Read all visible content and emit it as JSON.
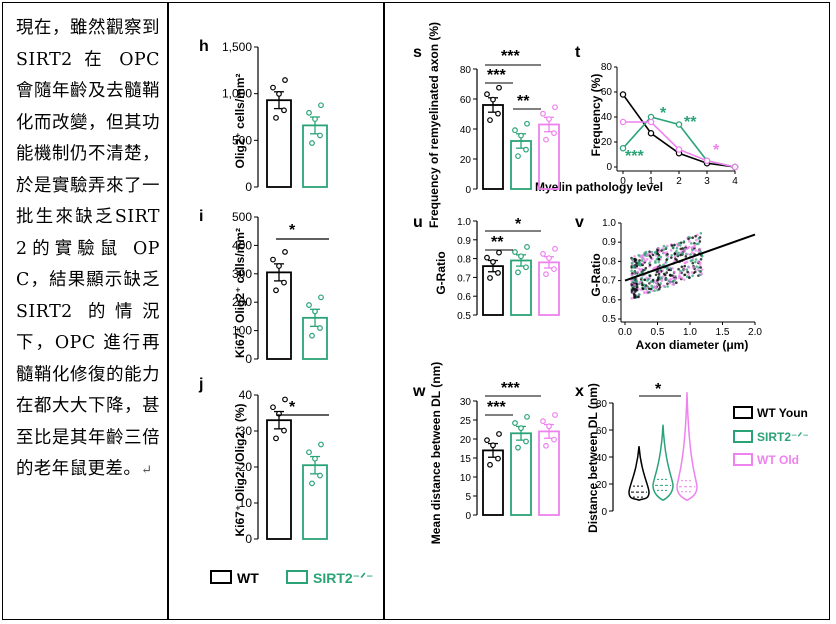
{
  "paragraph": "現在，雖然觀察到 SIRT2 在 OPC 會隨年齡及去髓鞘化而改變，但其功能機制仍不清楚，於是實驗弄來了一批生來缺乏SIRT2的實驗鼠 OPC，結果顯示缺乏 SIRT2 的情況下，OPC 進行再髓鞘化修復的能力在都大大下降，甚至比是其年齡三倍的老年鼠更差。",
  "return_mark": "↵",
  "colors": {
    "wt": "#000000",
    "sirt2": "#2aa377",
    "old": "#ee82ee"
  },
  "legend_middle": {
    "wt": "WT",
    "sirt2": "SIRT2⁻ᐟ⁻"
  },
  "legend_right": {
    "wt": "WT Youn",
    "sirt2": "SIRT2⁻ᐟ⁻",
    "old": "WT Old"
  },
  "panels": {
    "h": {
      "letter": "h",
      "ylabel": "Olig2⁺ cells/mm²",
      "ticks": [
        "1,500",
        "1,000",
        "500",
        "0"
      ]
    },
    "i": {
      "letter": "i",
      "ylabel": "Ki67⁺ Olig2⁺ cells/mm²",
      "ticks": [
        "500",
        "400",
        "300",
        "200",
        "100",
        "0"
      ],
      "sig": "*"
    },
    "j": {
      "letter": "j",
      "ylabel": "Ki67⁺ Olig2⁺/Olig2⁺ (%)",
      "ticks": [
        "40",
        "30",
        "20",
        "10",
        "0"
      ],
      "sig": "*"
    },
    "s": {
      "letter": "s",
      "ylabel": "Frequency of remyelinated axon (%)",
      "ticks": [
        "80",
        "60",
        "40",
        "20",
        "0"
      ],
      "sig": [
        "***",
        "***",
        "**"
      ]
    },
    "t": {
      "letter": "t",
      "ylabel": "Frequency (%)",
      "xlabel": "Myelin pathology level",
      "yticks": [
        "80",
        "60",
        "40",
        "20",
        "0"
      ],
      "xticks": [
        "0",
        "1",
        "2",
        "3",
        "4"
      ],
      "sig": [
        "***",
        "*",
        "**",
        "*"
      ]
    },
    "u": {
      "letter": "u",
      "ylabel": "G-Ratio",
      "ticks": [
        "1.0",
        "0.9",
        "0.8",
        "0.7",
        "0.6",
        "0.5"
      ],
      "sig": [
        "**",
        "*"
      ]
    },
    "v": {
      "letter": "v",
      "ylabel": "G-Ratio",
      "xlabel": "Axon diameter (μm)",
      "yticks": [
        "1.0",
        "0.9",
        "0.8",
        "0.7",
        "0.6",
        "0.5"
      ],
      "xticks": [
        "0.0",
        "0.5",
        "1.0",
        "1.5",
        "2.0"
      ]
    },
    "w": {
      "letter": "w",
      "ylabel": "Mean distance between DL (nm)",
      "ticks": [
        "30",
        "25",
        "20",
        "15",
        "10",
        "5",
        "0"
      ],
      "sig": [
        "***",
        "***"
      ]
    },
    "x": {
      "letter": "x",
      "ylabel": "Distance between DL (nm)",
      "ticks": [
        "80",
        "60",
        "40",
        "20",
        "0"
      ],
      "sig": "*"
    }
  },
  "chart_data": [
    {
      "type": "bar",
      "panel": "h",
      "categories": [
        "WT",
        "SIRT2⁻ᐟ⁻"
      ],
      "values": [
        930,
        660
      ],
      "ylim": [
        0,
        1500
      ]
    },
    {
      "type": "bar",
      "panel": "i",
      "categories": [
        "WT",
        "SIRT2⁻ᐟ⁻"
      ],
      "values": [
        305,
        145
      ],
      "ylim": [
        0,
        500
      ]
    },
    {
      "type": "bar",
      "panel": "j",
      "categories": [
        "WT",
        "SIRT2⁻ᐟ⁻"
      ],
      "values": [
        33,
        20.5
      ],
      "ylim": [
        0,
        40
      ]
    },
    {
      "type": "bar",
      "panel": "s",
      "categories": [
        "WT Youn",
        "SIRT2⁻ᐟ⁻",
        "WT Old"
      ],
      "values": [
        56,
        32,
        43
      ],
      "ylim": [
        0,
        80
      ]
    },
    {
      "type": "line",
      "panel": "t",
      "x": [
        0,
        1,
        2,
        3,
        4
      ],
      "ylim": [
        0,
        80
      ],
      "series": [
        {
          "name": "WT Youn",
          "values": [
            58,
            27,
            11,
            3,
            0
          ]
        },
        {
          "name": "SIRT2⁻ᐟ⁻",
          "values": [
            15,
            40,
            34,
            5,
            0
          ]
        },
        {
          "name": "WT Old",
          "values": [
            36,
            36,
            14,
            5,
            0
          ]
        }
      ]
    },
    {
      "type": "bar",
      "panel": "u",
      "categories": [
        "WT Youn",
        "SIRT2⁻ᐟ⁻",
        "WT Old"
      ],
      "values": [
        0.76,
        0.79,
        0.78
      ],
      "ylim": [
        0.5,
        1.0
      ]
    },
    {
      "type": "scatter",
      "panel": "v",
      "xlim": [
        0,
        2
      ],
      "ylim": [
        0.5,
        1.0
      ],
      "trendline": {
        "x": [
          0,
          2
        ],
        "y": [
          0.7,
          0.94
        ]
      }
    },
    {
      "type": "bar",
      "panel": "w",
      "categories": [
        "WT Youn",
        "SIRT2⁻ᐟ⁻",
        "WT Old"
      ],
      "values": [
        17,
        21.5,
        22
      ],
      "ylim": [
        0,
        30
      ]
    },
    {
      "type": "violin",
      "panel": "x",
      "categories": [
        "WT Youn",
        "SIRT2⁻ᐟ⁻",
        "WT Old"
      ],
      "medians": [
        14,
        19,
        18
      ],
      "max": [
        48,
        64,
        88
      ],
      "ylim": [
        0,
        80
      ]
    }
  ]
}
